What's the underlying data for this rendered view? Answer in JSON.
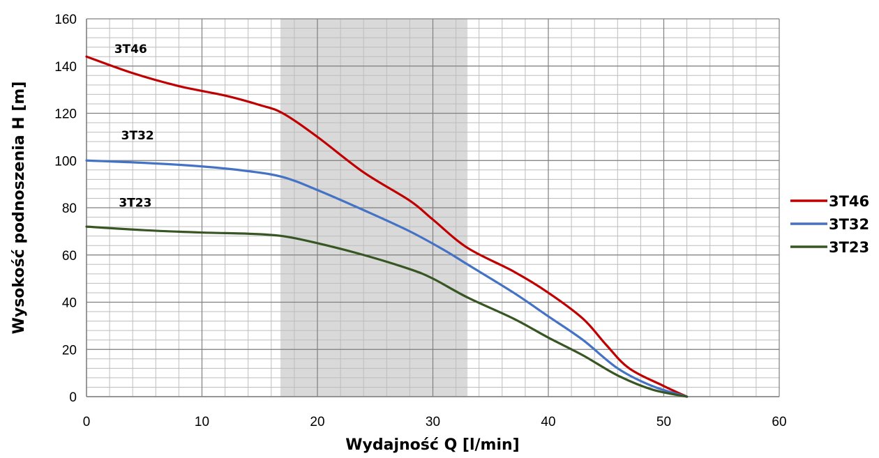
{
  "chart_data": {
    "type": "line",
    "xlabel": "Wydajność Q [l/min]",
    "ylabel": "Wysokość podnoszenia H [m]",
    "xlim": [
      0,
      60
    ],
    "ylim": [
      0,
      160
    ],
    "xticks": [
      0,
      10,
      20,
      30,
      40,
      50,
      60
    ],
    "yticks": [
      0,
      20,
      40,
      60,
      80,
      100,
      120,
      140,
      160
    ],
    "grid": true,
    "minor_grid": {
      "x_step": 2,
      "y_step": 4
    },
    "shaded_region": {
      "x": [
        16.8,
        33
      ],
      "color": "#d9d9d9"
    },
    "legend_position": "right",
    "series": [
      {
        "name": "3T46",
        "color": "#c00000",
        "points": [
          [
            0,
            144
          ],
          [
            4,
            137
          ],
          [
            8,
            131.5
          ],
          [
            12,
            127.5
          ],
          [
            15,
            123.5
          ],
          [
            17,
            120
          ],
          [
            20,
            110
          ],
          [
            24,
            95
          ],
          [
            28,
            83
          ],
          [
            30,
            75
          ],
          [
            33,
            63
          ],
          [
            37,
            53
          ],
          [
            40,
            44
          ],
          [
            43,
            33
          ],
          [
            45,
            22
          ],
          [
            47,
            12
          ],
          [
            50,
            4.5
          ],
          [
            52,
            0
          ]
        ]
      },
      {
        "name": "3T32",
        "color": "#4472c4",
        "points": [
          [
            0,
            100
          ],
          [
            5,
            99
          ],
          [
            10,
            97.5
          ],
          [
            14,
            95.5
          ],
          [
            17,
            93
          ],
          [
            20,
            87.5
          ],
          [
            24,
            79
          ],
          [
            28,
            70
          ],
          [
            31,
            62
          ],
          [
            33,
            56
          ],
          [
            37,
            44
          ],
          [
            40,
            34
          ],
          [
            43,
            24
          ],
          [
            46,
            12
          ],
          [
            49,
            4.5
          ],
          [
            52,
            0
          ]
        ]
      },
      {
        "name": "3T23",
        "color": "#375623",
        "points": [
          [
            0,
            72
          ],
          [
            5,
            70.5
          ],
          [
            10,
            69.5
          ],
          [
            14,
            69
          ],
          [
            17,
            68
          ],
          [
            20,
            65
          ],
          [
            24,
            60
          ],
          [
            28,
            54
          ],
          [
            30,
            50
          ],
          [
            33,
            42
          ],
          [
            37,
            33
          ],
          [
            40,
            25
          ],
          [
            43,
            17.5
          ],
          [
            46,
            9
          ],
          [
            49,
            3
          ],
          [
            52,
            0
          ]
        ]
      }
    ],
    "annotations": [
      {
        "text": "3T46",
        "x": 2.4,
        "y": 145.5
      },
      {
        "text": "3T32",
        "x": 3,
        "y": 109
      },
      {
        "text": "3T23",
        "x": 2.8,
        "y": 80.5
      }
    ]
  }
}
